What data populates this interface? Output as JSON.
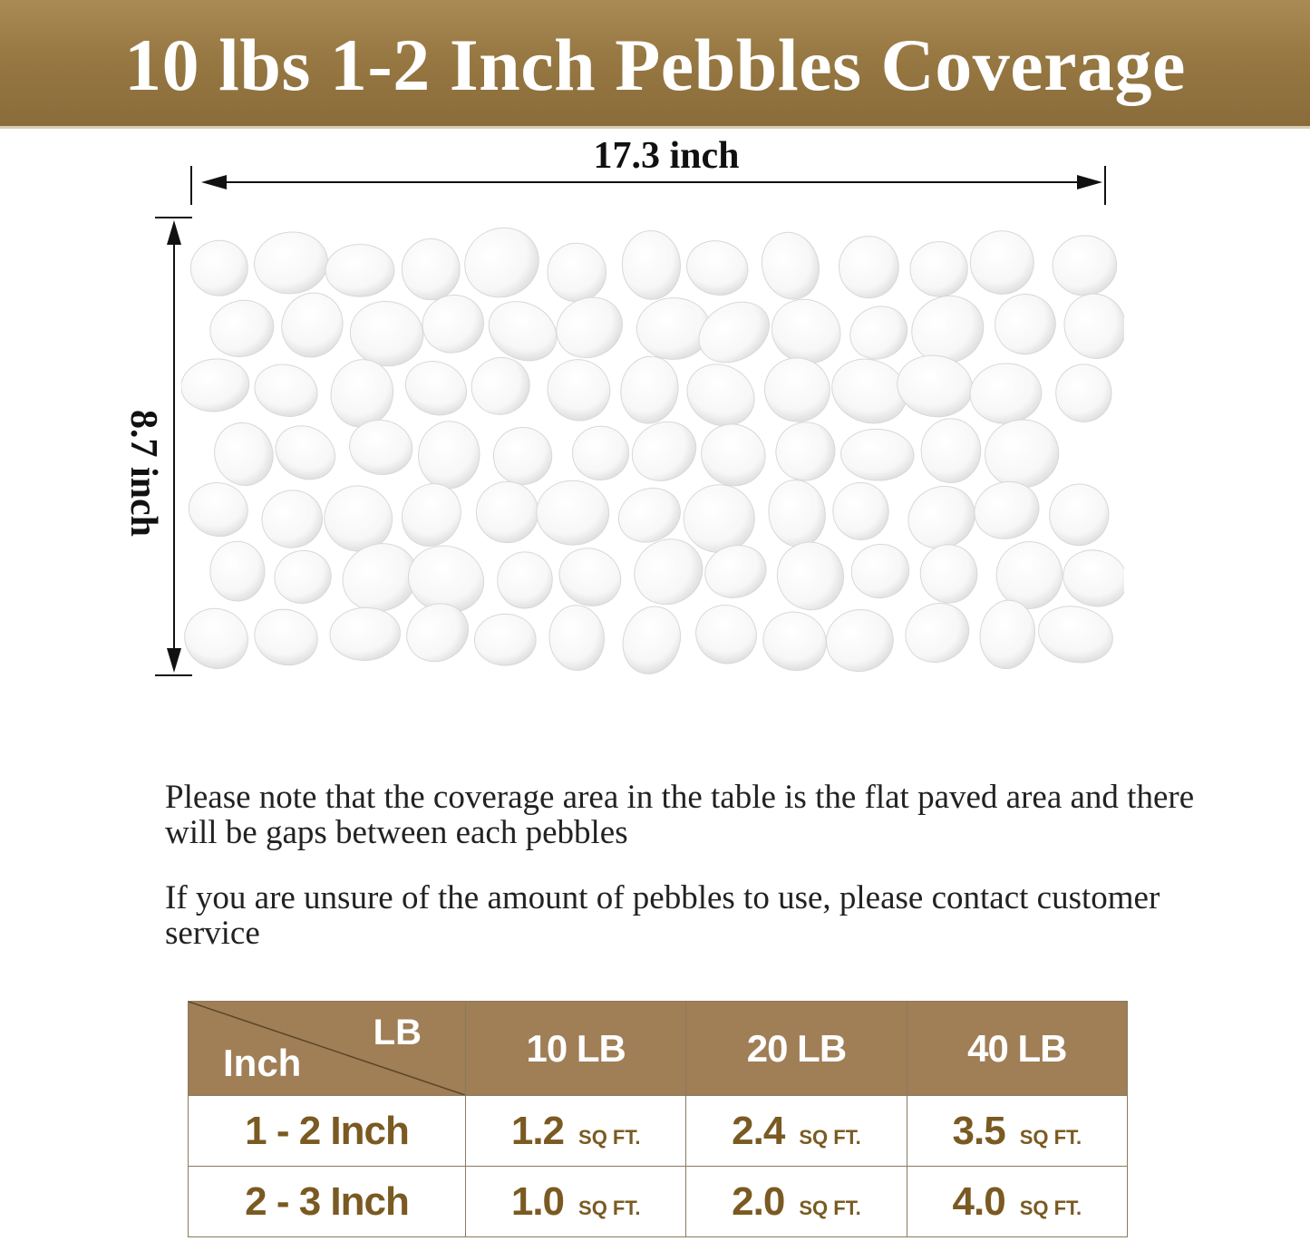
{
  "title": "10 lbs 1-2 Inch Pebbles Coverage",
  "dimensions": {
    "width": "17.3 inch",
    "height": "8.7 inch"
  },
  "notes": [
    "Please note that the coverage area in the table is the flat paved area and there will be gaps between each pebbles",
    "If you are unsure of the amount of pebbles to use, please contact customer service"
  ],
  "table": {
    "corner_top": "LB",
    "corner_bottom": "Inch",
    "columns": [
      "10 LB",
      "20 LB",
      "40 LB"
    ],
    "unit": "SQ FT.",
    "rows": [
      {
        "size": "1 - 2 Inch",
        "values": [
          "1.2",
          "2.4",
          "3.5"
        ]
      },
      {
        "size": "2 - 3 Inch",
        "values": [
          "1.0",
          "2.0",
          "4.0"
        ]
      }
    ]
  },
  "colors": {
    "banner": "#977842",
    "header": "#a07e56",
    "value_text": "#7a5a22"
  }
}
